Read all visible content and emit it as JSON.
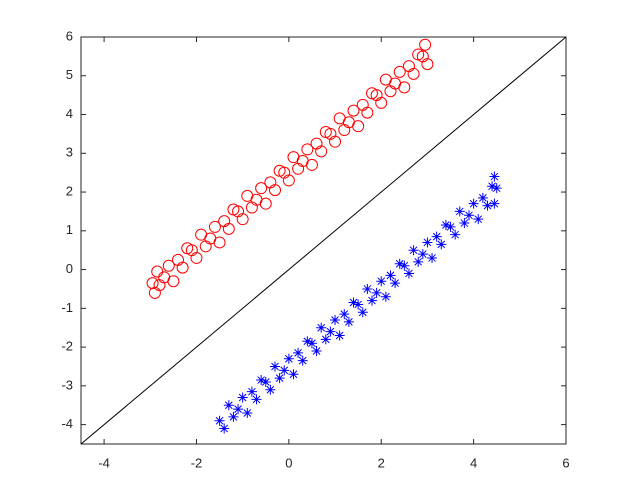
{
  "chart_data": {
    "type": "scatter",
    "xlim": [
      -4.5,
      6
    ],
    "ylim": [
      -4.5,
      6
    ],
    "xticks": [
      -4,
      -2,
      0,
      2,
      4,
      6
    ],
    "yticks": [
      -4,
      -3,
      -2,
      -1,
      0,
      1,
      2,
      3,
      4,
      5,
      6
    ],
    "series": [
      {
        "color": "#ff0000",
        "marker": "circle",
        "x": [
          -2.95,
          -2.9,
          -2.85,
          -2.8,
          -2.7,
          -2.6,
          -2.5,
          -2.4,
          -2.3,
          -2.2,
          -2.1,
          -2.0,
          -1.9,
          -1.8,
          -1.7,
          -1.6,
          -1.5,
          -1.4,
          -1.3,
          -1.2,
          -1.1,
          -1.0,
          -0.9,
          -0.8,
          -0.7,
          -0.6,
          -0.5,
          -0.4,
          -0.3,
          -0.2,
          -0.1,
          0,
          0.1,
          0.2,
          0.3,
          0.4,
          0.5,
          0.6,
          0.7,
          0.8,
          0.9,
          1.0,
          1.1,
          1.2,
          1.3,
          1.4,
          1.5,
          1.6,
          1.7,
          1.8,
          1.9,
          2.0,
          2.1,
          2.2,
          2.3,
          2.4,
          2.5,
          2.6,
          2.7,
          2.8,
          2.9,
          3.0,
          2.95
        ],
        "values": [
          -0.35,
          -0.6,
          -0.05,
          -0.4,
          -0.2,
          0.1,
          -0.3,
          0.25,
          0.05,
          0.55,
          0.5,
          0.3,
          0.9,
          0.6,
          0.8,
          1.1,
          0.7,
          1.25,
          1.05,
          1.55,
          1.5,
          1.3,
          1.9,
          1.6,
          1.8,
          2.1,
          1.7,
          2.25,
          2.05,
          2.55,
          2.5,
          2.3,
          2.9,
          2.6,
          2.8,
          3.1,
          2.7,
          3.25,
          3.05,
          3.55,
          3.5,
          3.3,
          3.9,
          3.6,
          3.8,
          4.1,
          3.7,
          4.25,
          4.05,
          4.55,
          4.5,
          4.3,
          4.9,
          4.6,
          4.8,
          5.1,
          4.7,
          5.25,
          5.05,
          5.55,
          5.5,
          5.3,
          5.8
        ]
      },
      {
        "color": "#0000ff",
        "marker": "star",
        "x": [
          -1.5,
          -1.4,
          -1.3,
          -1.2,
          -1.1,
          -1.0,
          -0.9,
          -0.8,
          -0.7,
          -0.6,
          -0.5,
          -0.4,
          -0.3,
          -0.2,
          -0.1,
          0,
          0.1,
          0.2,
          0.3,
          0.4,
          0.5,
          0.6,
          0.7,
          0.8,
          0.9,
          1.0,
          1.1,
          1.2,
          1.3,
          1.4,
          1.5,
          1.6,
          1.7,
          1.8,
          1.9,
          2.0,
          2.1,
          2.2,
          2.3,
          2.4,
          2.5,
          2.6,
          2.7,
          2.8,
          2.9,
          3.0,
          3.1,
          3.2,
          3.3,
          3.4,
          3.5,
          3.6,
          3.7,
          3.8,
          3.9,
          4.0,
          4.1,
          4.2,
          4.3,
          4.4,
          4.5,
          4.45,
          4.45
        ],
        "values": [
          -3.9,
          -4.1,
          -3.5,
          -3.8,
          -3.6,
          -3.3,
          -3.7,
          -3.15,
          -3.35,
          -2.85,
          -2.9,
          -3.1,
          -2.5,
          -2.8,
          -2.6,
          -2.3,
          -2.7,
          -2.15,
          -2.35,
          -1.85,
          -1.9,
          -2.1,
          -1.5,
          -1.8,
          -1.6,
          -1.3,
          -1.7,
          -1.15,
          -1.35,
          -0.85,
          -0.9,
          -1.1,
          -0.5,
          -0.8,
          -0.6,
          -0.3,
          -0.7,
          -0.15,
          -0.35,
          0.15,
          0.1,
          -0.1,
          0.5,
          0.2,
          0.4,
          0.7,
          0.3,
          0.85,
          0.65,
          1.15,
          1.1,
          0.9,
          1.5,
          1.2,
          1.4,
          1.7,
          1.3,
          1.85,
          1.65,
          2.15,
          2.1,
          2.4,
          1.7
        ]
      }
    ]
  }
}
